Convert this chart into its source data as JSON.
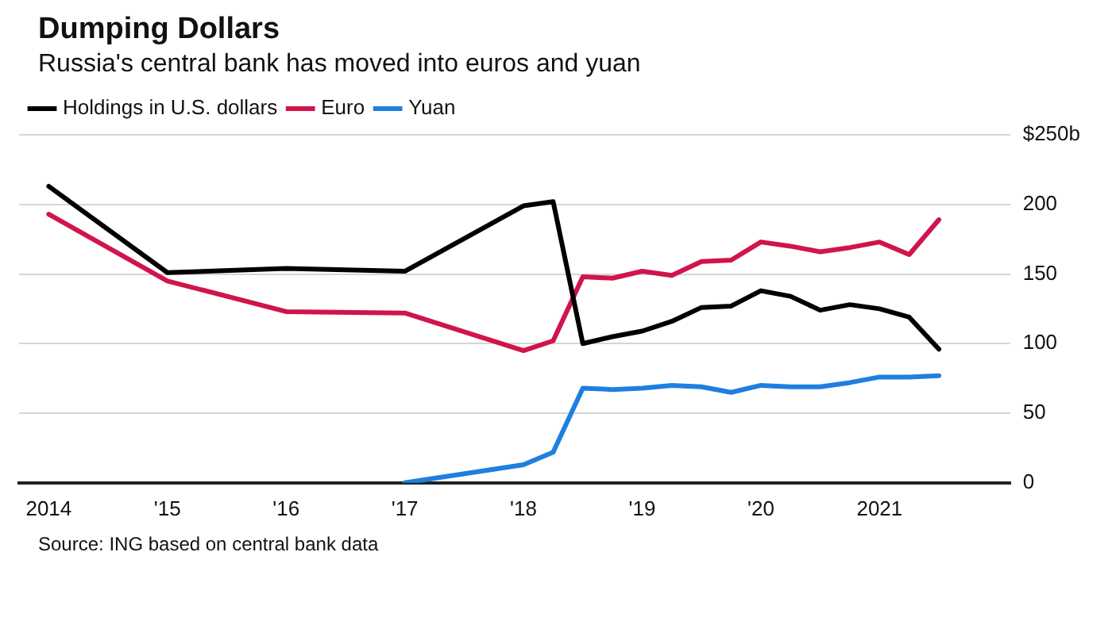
{
  "chart_data": {
    "type": "line",
    "title": "Dumping Dollars",
    "subtitle": "Russia's central bank has moved into euros and yuan",
    "annotations": [
      "Source: ING based on central bank data"
    ],
    "series": [
      {
        "name": "Holdings in U.S. dollars",
        "color": "#000000",
        "x": [
          2014,
          2015,
          2016,
          2017,
          2018,
          2018.25,
          2018.5,
          2018.75,
          2019,
          2019.25,
          2019.5,
          2019.75,
          2020,
          2020.25,
          2020.5,
          2020.75,
          2021,
          2021.25,
          2021.5
        ],
        "values": [
          213,
          151,
          154,
          152,
          199,
          202,
          100,
          105,
          109,
          116,
          126,
          127,
          138,
          134,
          124,
          128,
          125,
          119,
          96
        ]
      },
      {
        "name": "Euro",
        "color": "#d0144c",
        "x": [
          2014,
          2015,
          2016,
          2017,
          2018,
          2018.25,
          2018.5,
          2018.75,
          2019,
          2019.25,
          2019.5,
          2019.75,
          2020,
          2020.25,
          2020.5,
          2020.75,
          2021,
          2021.25,
          2021.5
        ],
        "values": [
          193,
          145,
          123,
          122,
          95,
          102,
          148,
          147,
          152,
          149,
          159,
          160,
          173,
          170,
          166,
          169,
          173,
          164,
          189
        ]
      },
      {
        "name": "Yuan",
        "color": "#1f7fe0",
        "x": [
          2017,
          2018,
          2018.25,
          2018.5,
          2018.75,
          2019,
          2019.25,
          2019.5,
          2019.75,
          2020,
          2020.25,
          2020.5,
          2020.75,
          2021,
          2021.25,
          2021.5
        ],
        "values": [
          0,
          13,
          22,
          68,
          67,
          68,
          70,
          69,
          65,
          70,
          69,
          69,
          72,
          76,
          76,
          77
        ]
      }
    ],
    "xlim": [
      2013.75,
      2022.1
    ],
    "xticks": [
      2014,
      {
        "value": 2015,
        "label": "'15"
      },
      {
        "value": 2016,
        "label": "'16"
      },
      {
        "value": 2017,
        "label": "'17"
      },
      {
        "value": 2018,
        "label": "'18"
      },
      {
        "value": 2019,
        "label": "'19"
      },
      {
        "value": 2020,
        "label": "'20"
      },
      2021
    ],
    "ylim": [
      0,
      250
    ],
    "yticks": [
      0,
      50,
      100,
      150,
      200,
      {
        "value": 250,
        "label": "$250b"
      }
    ],
    "grid": "y",
    "legend": "top left",
    "marker": "none",
    "line_style": "solid"
  }
}
